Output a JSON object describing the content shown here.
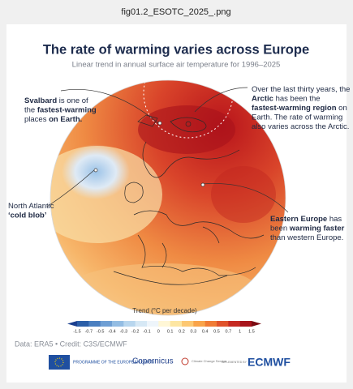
{
  "window_title": "fig01.2_ESOTC_2025_.png",
  "header": {
    "title": "The rate of warming varies across Europe",
    "subtitle": "Linear trend in annual surface air temperature for 1996–2025"
  },
  "annotations": [
    {
      "lines": [
        [
          {
            "text": "Svalbard",
            "bold": true
          },
          {
            "text": " is one of",
            "bold": false
          }
        ],
        [
          {
            "text": "the ",
            "bold": false
          },
          {
            "text": "fastest-warming",
            "bold": true
          }
        ],
        [
          {
            "text": "places ",
            "bold": false
          },
          {
            "text": "on Earth.",
            "bold": true
          }
        ]
      ]
    },
    {
      "lines": [
        [
          {
            "text": "Over the last thirty years, the",
            "bold": false
          }
        ],
        [
          {
            "text": "Arctic",
            "bold": true
          },
          {
            "text": " has been the",
            "bold": false
          }
        ],
        [
          {
            "text": "fastest-warming region",
            "bold": true
          },
          {
            "text": " on",
            "bold": false
          }
        ],
        [
          {
            "text": "Earth. The rate of warming",
            "bold": false
          }
        ],
        [
          {
            "text": "also varies across the Arctic.",
            "bold": false
          }
        ]
      ]
    },
    {
      "lines": [
        [
          {
            "text": "North Atlantic",
            "bold": false
          }
        ],
        [
          {
            "text": "‘cold blob’",
            "bold": true
          }
        ]
      ]
    },
    {
      "lines": [
        [
          {
            "text": "Eastern Europe",
            "bold": true
          },
          {
            "text": " has",
            "bold": false
          }
        ],
        [
          {
            "text": "been ",
            "bold": false
          },
          {
            "text": "warming faster",
            "bold": true
          }
        ],
        [
          {
            "text": "than western Europe.",
            "bold": false
          }
        ]
      ]
    }
  ],
  "legend": {
    "title": "Trend (°C per decade)",
    "ticks": [
      -1.5,
      -0.7,
      -0.5,
      -0.4,
      -0.3,
      -0.2,
      -0.1,
      0,
      0.1,
      0.2,
      0.3,
      0.4,
      0.5,
      0.7,
      1,
      1.5
    ],
    "colors": [
      "#1a3f8f",
      "#2c5fa8",
      "#4a7fc0",
      "#6f9fd4",
      "#94bde3",
      "#b8d6ee",
      "#d6e8f5",
      "#eef5fb",
      "#fff7d6",
      "#fde6a2",
      "#fdc872",
      "#f9a44a",
      "#f07c35",
      "#e0532b",
      "#c62a22",
      "#a8151c",
      "#7a0c12"
    ]
  },
  "footer": {
    "source": "Data: ERA5 • Credit: C3S/ECMWF",
    "logos": {
      "eu": "PROGRAMME OF THE EUROPEAN UNION",
      "copernicus": "Copernicus",
      "c3s": "Climate Change Service",
      "implemented": "IMPLEMENTED BY",
      "ecmwf": "ECMWF"
    }
  }
}
